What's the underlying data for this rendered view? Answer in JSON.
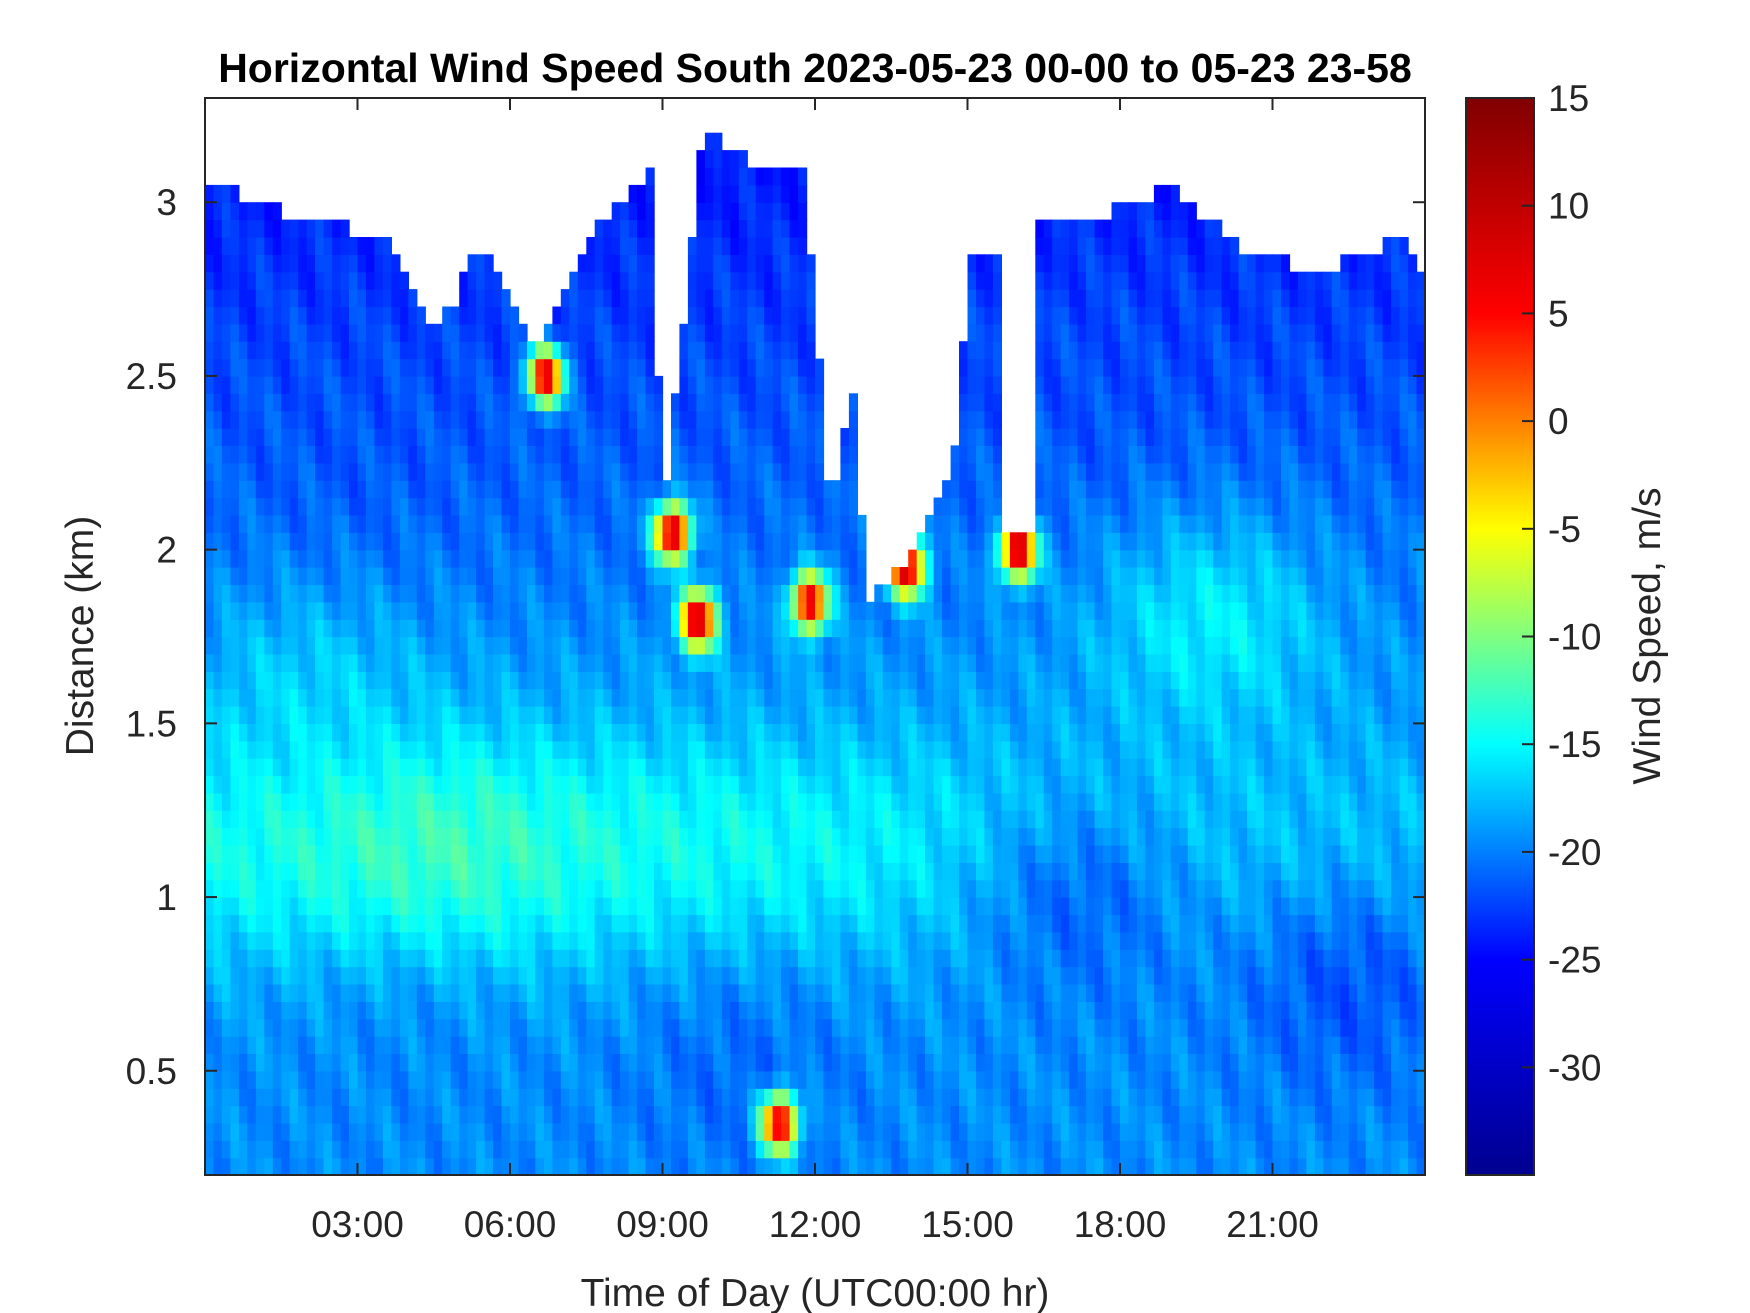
{
  "chart_data": {
    "type": "heatmap",
    "title": "Horizontal Wind Speed South 2023-05-23 00-00 to 05-23 23-58",
    "xlabel": "Time of Day (UTC00:00 hr)",
    "ylabel": "Distance (km)",
    "xlim": [
      "00:00",
      "23:58"
    ],
    "ylim": [
      0.2,
      3.3
    ],
    "x_ticks": [
      "03:00",
      "06:00",
      "09:00",
      "12:00",
      "15:00",
      "18:00",
      "21:00"
    ],
    "x_tick_hours": [
      3,
      6,
      9,
      12,
      15,
      18,
      21
    ],
    "y_ticks": [
      0.5,
      1,
      1.5,
      2,
      2.5,
      3
    ],
    "y_tick_labels": [
      "0.5",
      "1",
      "1.5",
      "2",
      "2.5",
      "3"
    ],
    "colorbar": {
      "label": "Wind Speed, m/s",
      "range": [
        -35,
        15
      ],
      "ticks": [
        15,
        10,
        5,
        0,
        -5,
        -10,
        -15,
        -20,
        -25,
        -30
      ],
      "tick_labels": [
        "15",
        "10",
        "5",
        "0",
        "-5",
        "-10",
        "-15",
        "-20",
        "-25",
        "-30"
      ],
      "colormap": "jet",
      "colormap_stops": [
        "#00008f",
        "#0000ff",
        "#00ffff",
        "#ffff00",
        "#ff0000",
        "#800000"
      ]
    },
    "data_ceiling_km": [
      {
        "hour": 0.2,
        "km": 3.05
      },
      {
        "hour": 2.0,
        "km": 2.95
      },
      {
        "hour": 3.5,
        "km": 2.9
      },
      {
        "hour": 4.5,
        "km": 2.6
      },
      {
        "hour": 5.5,
        "km": 2.9
      },
      {
        "hour": 6.5,
        "km": 2.55
      },
      {
        "hour": 7.5,
        "km": 2.9
      },
      {
        "hour": 8.8,
        "km": 3.1
      },
      {
        "hour": 9.0,
        "km": 2.1
      },
      {
        "hour": 9.8,
        "km": 3.2
      },
      {
        "hour": 11.0,
        "km": 3.1
      },
      {
        "hour": 11.8,
        "km": 3.1
      },
      {
        "hour": 12.3,
        "km": 2.1
      },
      {
        "hour": 12.8,
        "km": 2.5
      },
      {
        "hour": 13.0,
        "km": 1.85
      },
      {
        "hour": 14.0,
        "km": 2.0
      },
      {
        "hour": 14.8,
        "km": 2.3
      },
      {
        "hour": 15.0,
        "km": 2.85
      },
      {
        "hour": 15.6,
        "km": 2.85
      },
      {
        "hour": 15.7,
        "km": 2.05
      },
      {
        "hour": 16.3,
        "km": 2.05
      },
      {
        "hour": 16.4,
        "km": 2.95
      },
      {
        "hour": 17.5,
        "km": 2.95
      },
      {
        "hour": 19.0,
        "km": 3.05
      },
      {
        "hour": 20.5,
        "km": 2.85
      },
      {
        "hour": 22.0,
        "km": 2.8
      },
      {
        "hour": 23.5,
        "km": 2.9
      },
      {
        "hour": 24.0,
        "km": 2.75
      }
    ],
    "features": [
      {
        "hour": 4.5,
        "km": 1.1,
        "speed": -11
      },
      {
        "hour": 2.0,
        "km": 1.6,
        "speed": -15
      },
      {
        "hour": 3.0,
        "km": 2.3,
        "speed": -22
      },
      {
        "hour": 4.0,
        "km": 0.6,
        "speed": -20
      },
      {
        "hour": 10.5,
        "km": 0.5,
        "speed": -22
      },
      {
        "hour": 17.2,
        "km": 1.0,
        "speed": -24
      },
      {
        "hour": 17.4,
        "km": 2.5,
        "speed": -22
      },
      {
        "hour": 19.8,
        "km": 1.8,
        "speed": -12
      },
      {
        "hour": 22.5,
        "km": 0.75,
        "speed": -24
      },
      {
        "hour": 9.7,
        "km": 1.8,
        "speed": 10
      },
      {
        "hour": 9.2,
        "km": 2.05,
        "speed": 10
      },
      {
        "hour": 13.8,
        "km": 1.95,
        "speed": 10
      },
      {
        "hour": 16.0,
        "km": 2.0,
        "speed": 10
      },
      {
        "hour": 6.7,
        "km": 2.5,
        "speed": 8
      },
      {
        "hour": 11.9,
        "km": 1.85,
        "speed": 8
      },
      {
        "hour": 11.3,
        "km": 0.35,
        "speed": 8
      }
    ]
  }
}
